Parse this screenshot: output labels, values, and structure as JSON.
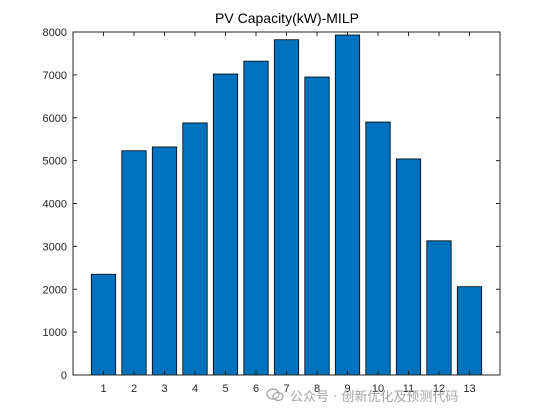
{
  "chart_data": {
    "type": "bar",
    "title": "PV Capacity(kW)-MILP",
    "categories": [
      "1",
      "2",
      "3",
      "4",
      "5",
      "6",
      "7",
      "8",
      "9",
      "10",
      "11",
      "12",
      "13"
    ],
    "values": [
      2350,
      5230,
      5320,
      5880,
      7020,
      7320,
      7820,
      6950,
      7930,
      5900,
      5040,
      3130,
      2060
    ],
    "ylim": [
      0,
      8000
    ],
    "yticks": [
      0,
      1000,
      2000,
      3000,
      4000,
      5000,
      6000,
      7000,
      8000
    ],
    "xlabel": "",
    "ylabel": "",
    "grid": false,
    "colors": {
      "bar": "#0072BD",
      "bar_edge": "#000000",
      "axis": "#262626"
    }
  },
  "watermark": {
    "text": "公众号 · 创新优化及预测代码"
  }
}
